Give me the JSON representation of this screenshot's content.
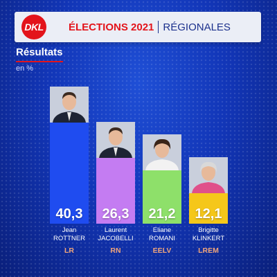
{
  "header": {
    "logo_text": "DKL",
    "title": "ÉLECTIONS 2021",
    "subtitle": "RÉGIONALES"
  },
  "section": {
    "title": "Résultats",
    "unit": "en %"
  },
  "colors": {
    "accent": "#e3141b",
    "background": "#1236b8"
  },
  "chart_data": {
    "type": "bar",
    "title": "Résultats",
    "ylabel": "en %",
    "ylim": [
      0,
      40.3
    ],
    "categories": [
      "LR",
      "RN",
      "EELV",
      "LREM"
    ],
    "values": [
      40.3,
      26.3,
      21.2,
      12.1
    ],
    "value_labels": [
      "40,3",
      "26,3",
      "21,2",
      "12,1"
    ],
    "candidates": [
      {
        "first": "Jean",
        "last": "ROTTNER",
        "party": "LR",
        "color": "#1f4cf0",
        "photo": "candidate-photo"
      },
      {
        "first": "Laurent",
        "last": "JACOBELLI",
        "party": "RN",
        "color": "#c47cf2",
        "photo": "candidate-photo"
      },
      {
        "first": "Eliane",
        "last": "ROMANI",
        "party": "EELV",
        "color": "#8ee06a",
        "photo": "candidate-photo"
      },
      {
        "first": "Brigitte",
        "last": "KLINKERT",
        "party": "LREM",
        "color": "#f5c71a",
        "photo": "candidate-photo"
      }
    ]
  }
}
